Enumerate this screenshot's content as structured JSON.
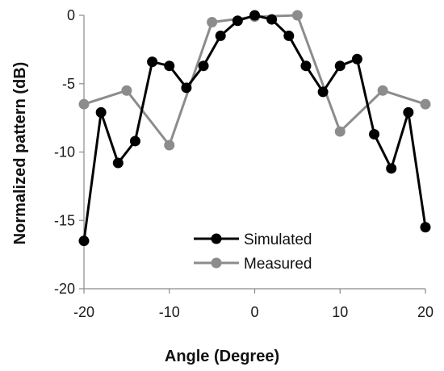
{
  "chart_data": {
    "type": "line",
    "xlabel": "Angle (Degree)",
    "ylabel": "Normalized pattern (dB)",
    "xlim": [
      -20,
      20
    ],
    "ylim": [
      -20,
      0
    ],
    "xticks": [
      -20,
      -10,
      0,
      10,
      20
    ],
    "yticks": [
      0,
      -5,
      -10,
      -15,
      -20
    ],
    "grid": false,
    "legend_position": "bottom-center",
    "series": [
      {
        "name": "Simulated",
        "color": "#000000",
        "x": [
          -20,
          -18,
          -16,
          -14,
          -12,
          -10,
          -8,
          -6,
          -4,
          -2,
          0,
          2,
          4,
          6,
          8,
          10,
          12,
          14,
          16,
          18,
          20
        ],
        "y": [
          -16.5,
          -7.1,
          -10.8,
          -9.2,
          -3.4,
          -3.7,
          -5.3,
          -3.7,
          -1.5,
          -0.4,
          0,
          -0.3,
          -1.5,
          -3.7,
          -5.6,
          -3.7,
          -3.2,
          -8.7,
          -11.2,
          -7.1,
          -15.5
        ]
      },
      {
        "name": "Measured",
        "color": "#8c8c8c",
        "x": [
          -20,
          -15,
          -10,
          -5,
          0,
          5,
          10,
          15,
          20
        ],
        "y": [
          -6.5,
          -5.5,
          -9.5,
          -0.5,
          -0.1,
          0,
          -8.5,
          -5.5,
          -6.5
        ]
      }
    ]
  }
}
